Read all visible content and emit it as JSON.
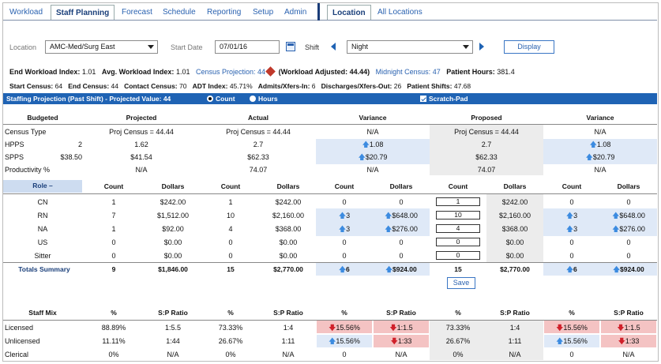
{
  "nav": {
    "tabs": [
      "Workload",
      "Staff Planning",
      "Forecast",
      "Schedule",
      "Reporting",
      "Setup",
      "Admin"
    ],
    "active_tab": "Staff Planning",
    "right_tabs": [
      "Location",
      "All Locations"
    ],
    "right_active": "Location"
  },
  "controls": {
    "location_label": "Location",
    "location_value": "AMC-Med/Surg East",
    "start_date_label": "Start Date",
    "start_date_value": "07/01/16",
    "shift_label": "Shift",
    "shift_value": "Night",
    "display_label": "Display"
  },
  "stats1": {
    "end_workload_index_label": "End Workload Index:",
    "end_workload_index": "1.01",
    "avg_workload_index_label": "Avg. Workload Index:",
    "avg_workload_index": "1.01",
    "census_projection_label": "Census Projection:",
    "census_projection": "44",
    "workload_adjusted": "(Workload Adjusted: 44.44)",
    "midnight_census_label": "Midnight Census:",
    "midnight_census": "47",
    "patient_hours_label": "Patient Hours:",
    "patient_hours": "381.4"
  },
  "stats2": {
    "start_census_label": "Start Census:",
    "start_census": "64",
    "end_census_label": "End Census:",
    "end_census": "44",
    "contact_census_label": "Contact Census:",
    "contact_census": "70",
    "adt_index_label": "ADT Index:",
    "adt_index": "45.71%",
    "admits_label": "Admits/Xfers-In:",
    "admits": "6",
    "discharges_label": "Discharges/Xfers-Out:",
    "discharges": "26",
    "patient_shifts_label": "Patient Shifts:",
    "patient_shifts": "47.68"
  },
  "projection_bar": {
    "title": "Staffing Projection (Past Shift) - Projected Value: 44",
    "count_label": "Count",
    "hours_label": "Hours",
    "scratch_label": "Scratch-Pad"
  },
  "summary": {
    "headers": [
      "Budgeted",
      "Projected",
      "Actual",
      "Variance",
      "Proposed",
      "Variance"
    ],
    "rows": [
      {
        "label": "Census Type",
        "budget": "",
        "projected": "Proj Census = 44.44",
        "actual": "Proj Census = 44.44",
        "variance": "N/A",
        "proposed": "Proj Census = 44.44",
        "variance2": "N/A"
      },
      {
        "label": "HPPS",
        "budget": "2",
        "projected": "1.62",
        "actual": "2.7",
        "variance": "1.08",
        "proposed": "2.7",
        "variance2": "1.08"
      },
      {
        "label": "SPPS",
        "budget": "$38.50",
        "projected": "$41.54",
        "actual": "$62.33",
        "variance": "$20.79",
        "proposed": "$62.33",
        "variance2": "$20.79"
      },
      {
        "label": "Productivity %",
        "budget": "",
        "projected": "N/A",
        "actual": "74.07",
        "variance": "N/A",
        "proposed": "74.07",
        "variance2": "N/A"
      }
    ]
  },
  "roles": {
    "role_header": "Role",
    "col_headers": [
      "Count",
      "Dollars",
      "Count",
      "Dollars",
      "Count",
      "Dollars",
      "Count",
      "Dollars",
      "Count",
      "Dollars"
    ],
    "rows": [
      {
        "role": "CN",
        "c1": "1",
        "d1": "$242.00",
        "c2": "1",
        "d2": "$242.00",
        "c3": "0",
        "d3": "0",
        "c4": "1",
        "d4": "$242.00",
        "c5": "0",
        "d5": "0"
      },
      {
        "role": "RN",
        "c1": "7",
        "d1": "$1,512.00",
        "c2": "10",
        "d2": "$2,160.00",
        "c3": "3",
        "d3": "$648.00",
        "c4": "10",
        "d4": "$2,160.00",
        "c5": "3",
        "d5": "$648.00"
      },
      {
        "role": "NA",
        "c1": "1",
        "d1": "$92.00",
        "c2": "4",
        "d2": "$368.00",
        "c3": "3",
        "d3": "$276.00",
        "c4": "4",
        "d4": "$368.00",
        "c5": "3",
        "d5": "$276.00"
      },
      {
        "role": "US",
        "c1": "0",
        "d1": "$0.00",
        "c2": "0",
        "d2": "$0.00",
        "c3": "0",
        "d3": "0",
        "c4": "0",
        "d4": "$0.00",
        "c5": "0",
        "d5": "0"
      },
      {
        "role": "Sitter",
        "c1": "0",
        "d1": "$0.00",
        "c2": "0",
        "d2": "$0.00",
        "c3": "0",
        "d3": "0",
        "c4": "0",
        "d4": "$0.00",
        "c5": "0",
        "d5": "0"
      }
    ],
    "totals": {
      "role": "Totals Summary",
      "c1": "9",
      "d1": "$1,846.00",
      "c2": "15",
      "d2": "$2,770.00",
      "c3": "6",
      "d3": "$924.00",
      "c4": "15",
      "d4": "$2,770.00",
      "c5": "6",
      "d5": "$924.00"
    },
    "save_label": "Save"
  },
  "mix": {
    "headers": [
      "Staff Mix",
      "%",
      "S:P Ratio",
      "%",
      "S:P Ratio",
      "%",
      "S:P Ratio",
      "%",
      "S:P Ratio",
      "%",
      "S:P Ratio"
    ],
    "rows": [
      {
        "label": "Licensed",
        "p1": "88.89%",
        "r1": "1:5.5",
        "p2": "73.33%",
        "r2": "1:4",
        "p3": "15.56%",
        "r3": "1:1.5",
        "p4": "73.33%",
        "r4": "1:4",
        "p5": "15.56%",
        "r5": "1:1.5"
      },
      {
        "label": "Unlicensed",
        "p1": "11.11%",
        "r1": "1:44",
        "p2": "26.67%",
        "r2": "1:11",
        "p3": "15.56%",
        "r3": "1:33",
        "p4": "26.67%",
        "r4": "1:11",
        "p5": "15.56%",
        "r5": "1:33"
      },
      {
        "label": "Clerical",
        "p1": "0%",
        "r1": "N/A",
        "p2": "0%",
        "r2": "N/A",
        "p3": "0",
        "r3": "N/A",
        "p4": "0%",
        "r4": "N/A",
        "p5": "0",
        "r5": "N/A"
      }
    ]
  },
  "colors": {
    "brand_blue": "#1f63b4",
    "up_arrow": "#3c8be0",
    "down_arrow": "#d0202a",
    "variance_bg": "#dfe9f7",
    "negative_bg": "#f4c3c3"
  }
}
